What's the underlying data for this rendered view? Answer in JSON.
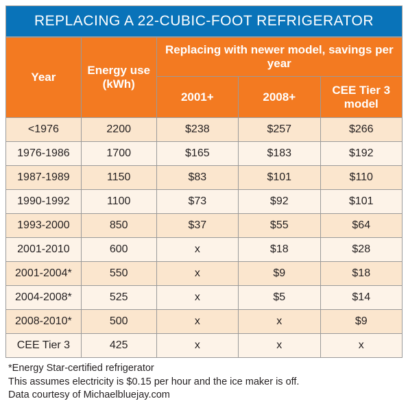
{
  "title": "REPLACING A 22-CUBIC-FOOT REFRIGERATOR",
  "colors": {
    "title_bg": "#0973b9",
    "header_bg": "#f37a21",
    "row_bg_a": "#fbe6ce",
    "row_bg_b": "#fdf3e8",
    "border": "#9a9a9a",
    "title_text": "#ffffff",
    "header_text": "#ffffff",
    "body_text": "#231f20"
  },
  "typography": {
    "title_fontsize": 21,
    "header_fontsize": 17,
    "cell_fontsize": 16,
    "footnote_fontsize": 14.5,
    "font_family": "Arial"
  },
  "columns": {
    "year": "Year",
    "energy": "Energy use (kWh)",
    "savings_group": "Replacing with newer model, savings per year",
    "sub1": "2001+",
    "sub2": "2008+",
    "sub3": "CEE Tier 3 model"
  },
  "rows": [
    {
      "year": "<1976",
      "energy": "2200",
      "s1": "$238",
      "s2": "$257",
      "s3": "$266"
    },
    {
      "year": "1976-1986",
      "energy": "1700",
      "s1": "$165",
      "s2": "$183",
      "s3": "$192"
    },
    {
      "year": "1987-1989",
      "energy": "1150",
      "s1": "$83",
      "s2": "$101",
      "s3": "$110"
    },
    {
      "year": "1990-1992",
      "energy": "1100",
      "s1": "$73",
      "s2": "$92",
      "s3": "$101"
    },
    {
      "year": "1993-2000",
      "energy": "850",
      "s1": "$37",
      "s2": "$55",
      "s3": "$64"
    },
    {
      "year": "2001-2010",
      "energy": "600",
      "s1": "x",
      "s2": "$18",
      "s3": "$28"
    },
    {
      "year": "2001-2004*",
      "energy": "550",
      "s1": "x",
      "s2": "$9",
      "s3": "$18"
    },
    {
      "year": "2004-2008*",
      "energy": "525",
      "s1": "x",
      "s2": "$5",
      "s3": "$14"
    },
    {
      "year": "2008-2010*",
      "energy": "500",
      "s1": "x",
      "s2": "x",
      "s3": "$9"
    },
    {
      "year": "CEE Tier 3",
      "energy": "425",
      "s1": "x",
      "s2": "x",
      "s3": "x"
    }
  ],
  "footnotes": {
    "line1": "*Energy Star-certified refrigerator",
    "line2": "This assumes electricity is $0.15 per hour and the ice maker is off.",
    "line3": "Data courtesy of Michaelbluejay.com"
  }
}
